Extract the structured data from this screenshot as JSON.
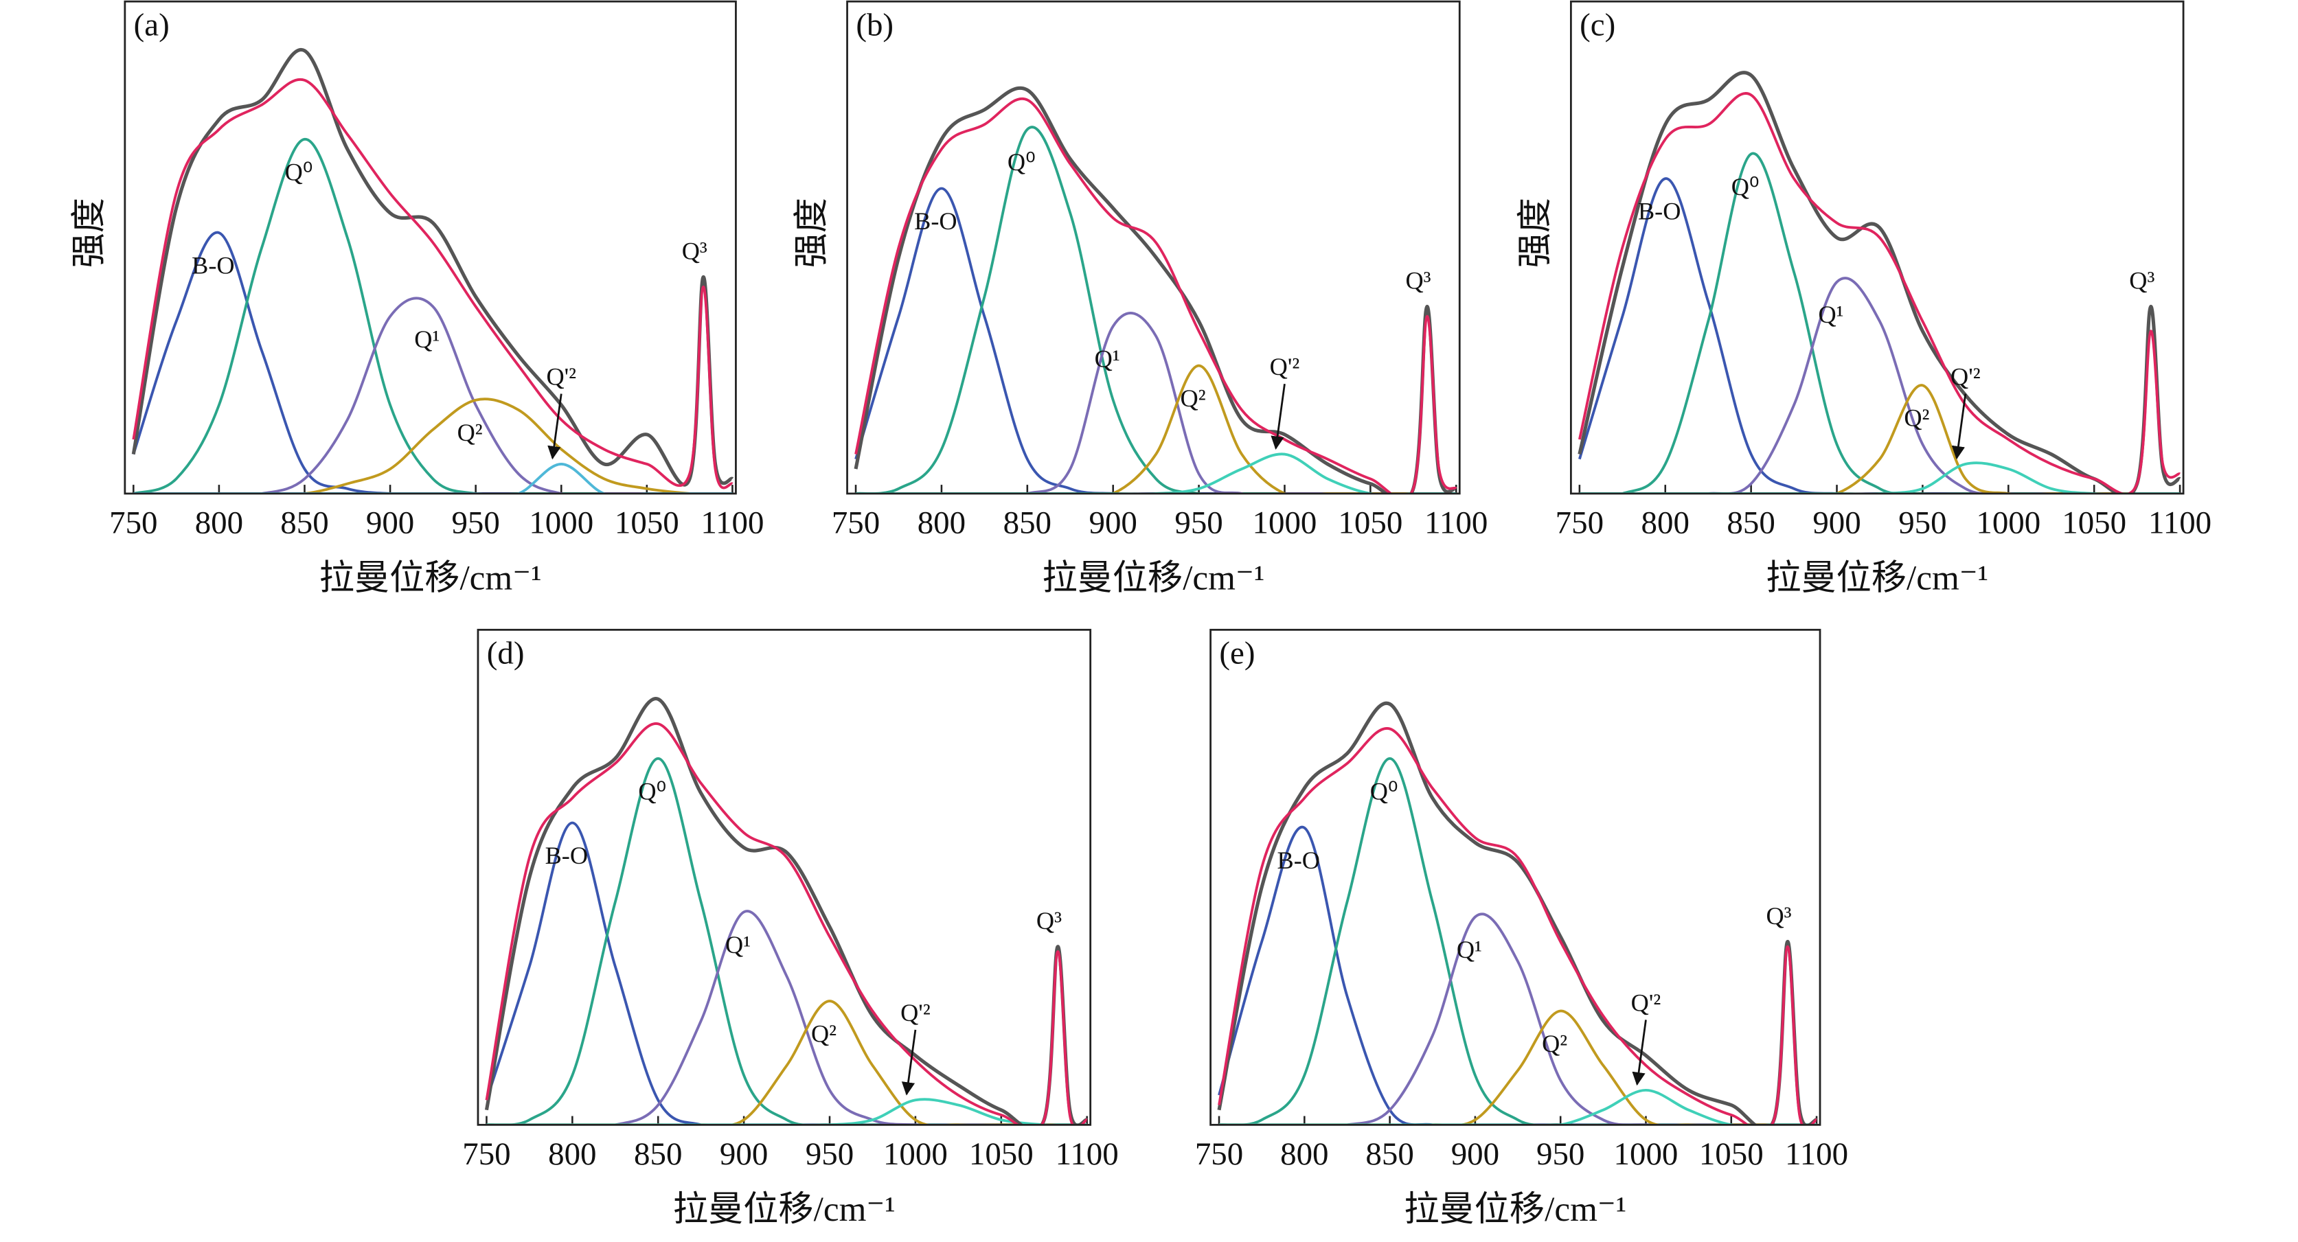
{
  "chart_data": [
    {
      "type": "line",
      "panel_label": "(a)",
      "x_label": "拉曼位移/cm⁻¹",
      "y_label": "强度",
      "x": [
        750,
        775,
        800,
        825,
        850,
        875,
        900,
        925,
        950,
        975,
        1000,
        1025,
        1050,
        1075,
        1083,
        1090,
        1100
      ],
      "xlim": [
        745,
        1102
      ],
      "xticks": [
        750,
        800,
        850,
        900,
        950,
        1000,
        1050,
        1100
      ],
      "ylim": [
        0,
        100
      ],
      "series": [
        {
          "name": "B-O",
          "color": "#3a56b0",
          "values": [
            8,
            35,
            53,
            29,
            5,
            1,
            0,
            0,
            0,
            0,
            0,
            0,
            0,
            0,
            0,
            0,
            0
          ]
        },
        {
          "name": "Q⁰",
          "color": "#2aa58a",
          "values": [
            0,
            3,
            18,
            50,
            72,
            52,
            18,
            3,
            0,
            0,
            0,
            0,
            0,
            0,
            0,
            0,
            0
          ]
        },
        {
          "name": "Q¹",
          "color": "#7a6cb5",
          "values": [
            0,
            0,
            0,
            0,
            3,
            15,
            36,
            38,
            18,
            4,
            0,
            0,
            0,
            0,
            0,
            0,
            0
          ]
        },
        {
          "name": "Q²",
          "color": "#c19a1e",
          "values": [
            0,
            0,
            0,
            0,
            0,
            2,
            5,
            13,
            19,
            17,
            9,
            3,
            1,
            0,
            0,
            0,
            0
          ]
        },
        {
          "name": "Q'²",
          "color": "#4fb8d8",
          "label_arrow": true,
          "values": [
            0,
            0,
            0,
            0,
            0,
            0,
            0,
            0,
            0,
            0,
            6,
            0,
            0,
            0,
            0,
            0,
            0
          ]
        },
        {
          "color": "#555555",
          "values": [
            8,
            58,
            76,
            80,
            90,
            70,
            57,
            55,
            40,
            28,
            18,
            6,
            12,
            3,
            44,
            6,
            3
          ]
        },
        {
          "color": "#e0245e",
          "values": [
            11,
            61,
            74,
            79,
            84,
            73,
            61,
            51,
            38,
            26,
            15,
            9,
            6,
            4,
            42,
            5,
            2
          ]
        }
      ],
      "annotations": [
        {
          "text": "Q³",
          "x": 1083
        }
      ]
    },
    {
      "type": "line",
      "panel_label": "(b)",
      "x_label": "拉曼位移/cm⁻¹",
      "y_label": "强度",
      "x": [
        750,
        775,
        800,
        825,
        850,
        875,
        900,
        925,
        950,
        975,
        1000,
        1025,
        1050,
        1075,
        1083,
        1090,
        1100
      ],
      "xlim": [
        745,
        1102
      ],
      "xticks": [
        750,
        800,
        850,
        900,
        950,
        1000,
        1050,
        1100
      ],
      "ylim": [
        0,
        100
      ],
      "series": [
        {
          "name": "B-O",
          "color": "#3a56b0",
          "values": [
            7,
            36,
            62,
            36,
            7,
            1,
            0,
            0,
            0,
            0,
            0,
            0,
            0,
            0,
            0,
            0,
            0
          ]
        },
        {
          "name": "Q⁰",
          "color": "#2aa58a",
          "values": [
            0,
            1,
            9,
            40,
            74,
            57,
            19,
            3,
            0,
            0,
            0,
            0,
            0,
            0,
            0,
            0,
            0
          ]
        },
        {
          "name": "Q¹",
          "color": "#7a6cb5",
          "values": [
            0,
            0,
            0,
            0,
            0,
            5,
            34,
            32,
            4,
            0,
            0,
            0,
            0,
            0,
            0,
            0,
            0
          ]
        },
        {
          "name": "Q²",
          "color": "#c19a1e",
          "values": [
            0,
            0,
            0,
            0,
            0,
            0,
            0,
            8,
            26,
            8,
            0,
            0,
            0,
            0,
            0,
            0,
            0
          ]
        },
        {
          "name": "Q'²",
          "color": "#3fd0b8",
          "label_arrow": true,
          "values": [
            0,
            0,
            0,
            0,
            0,
            0,
            0,
            0,
            1,
            5,
            8,
            3,
            0,
            0,
            0,
            0,
            0
          ]
        },
        {
          "color": "#555555",
          "values": [
            5,
            48,
            72,
            78,
            82,
            68,
            58,
            48,
            35,
            15,
            12,
            6,
            2,
            1,
            38,
            4,
            1
          ]
        },
        {
          "color": "#e0245e",
          "values": [
            8,
            50,
            70,
            75,
            80,
            67,
            56,
            51,
            33,
            17,
            11,
            7,
            3,
            1,
            36,
            5,
            1
          ]
        }
      ],
      "annotations": [
        {
          "text": "Q³",
          "x": 1083
        }
      ]
    },
    {
      "type": "line",
      "panel_label": "(c)",
      "x_label": "拉曼位移/cm⁻¹",
      "y_label": "强度",
      "x": [
        750,
        775,
        800,
        825,
        850,
        875,
        900,
        925,
        950,
        975,
        1000,
        1025,
        1050,
        1075,
        1083,
        1090,
        1100
      ],
      "xlim": [
        745,
        1102
      ],
      "xticks": [
        750,
        800,
        850,
        900,
        950,
        1000,
        1050,
        1100
      ],
      "ylim": [
        0,
        100
      ],
      "series": [
        {
          "name": "B-O",
          "color": "#3a56b0",
          "values": [
            7,
            36,
            64,
            39,
            8,
            1,
            0,
            0,
            0,
            0,
            0,
            0,
            0,
            0,
            0,
            0,
            0
          ]
        },
        {
          "name": "Q⁰",
          "color": "#2aa58a",
          "values": [
            0,
            0,
            6,
            35,
            69,
            45,
            10,
            1,
            0,
            0,
            0,
            0,
            0,
            0,
            0,
            0,
            0
          ]
        },
        {
          "name": "Q¹",
          "color": "#7a6cb5",
          "values": [
            0,
            0,
            0,
            0,
            2,
            18,
            43,
            35,
            10,
            1,
            0,
            0,
            0,
            0,
            0,
            0,
            0
          ]
        },
        {
          "name": "Q²",
          "color": "#c19a1e",
          "values": [
            0,
            0,
            0,
            0,
            0,
            0,
            0,
            7,
            22,
            3,
            0,
            0,
            0,
            0,
            0,
            0,
            0
          ]
        },
        {
          "name": "Q'²",
          "color": "#3fd0b8",
          "label_arrow": true,
          "values": [
            0,
            0,
            0,
            0,
            0,
            0,
            0,
            0,
            1,
            6,
            5,
            1,
            0,
            0,
            0,
            0,
            0
          ]
        },
        {
          "color": "#555555",
          "values": [
            8,
            46,
            75,
            80,
            85,
            66,
            52,
            54,
            33,
            20,
            12,
            8,
            3,
            2,
            38,
            5,
            3
          ]
        },
        {
          "color": "#e0245e",
          "values": [
            11,
            50,
            72,
            75,
            81,
            64,
            55,
            52,
            35,
            18,
            11,
            6,
            3,
            2,
            33,
            6,
            4
          ]
        }
      ],
      "annotations": [
        {
          "text": "Q³",
          "x": 1083
        }
      ]
    },
    {
      "type": "line",
      "panel_label": "(d)",
      "x_label": "拉曼位移/cm⁻¹",
      "x": [
        750,
        775,
        800,
        825,
        850,
        875,
        900,
        925,
        950,
        975,
        1000,
        1025,
        1050,
        1075,
        1083,
        1090,
        1100
      ],
      "xlim": [
        745,
        1102
      ],
      "xticks": [
        750,
        800,
        850,
        900,
        950,
        1000,
        1050,
        1100
      ],
      "ylim": [
        0,
        100
      ],
      "series": [
        {
          "name": "B-O",
          "color": "#3a56b0",
          "values": [
            5,
            32,
            61,
            32,
            5,
            0,
            0,
            0,
            0,
            0,
            0,
            0,
            0,
            0,
            0,
            0,
            0
          ]
        },
        {
          "name": "Q⁰",
          "color": "#2aa58a",
          "values": [
            0,
            1,
            10,
            45,
            74,
            45,
            10,
            1,
            0,
            0,
            0,
            0,
            0,
            0,
            0,
            0,
            0
          ]
        },
        {
          "name": "Q¹",
          "color": "#7a6cb5",
          "values": [
            0,
            0,
            0,
            0,
            4,
            21,
            43,
            30,
            7,
            1,
            0,
            0,
            0,
            0,
            0,
            0,
            0
          ]
        },
        {
          "name": "Q²",
          "color": "#c19a1e",
          "values": [
            0,
            0,
            0,
            0,
            0,
            0,
            1,
            12,
            25,
            12,
            1,
            0,
            0,
            0,
            0,
            0,
            0
          ]
        },
        {
          "name": "Q'²",
          "color": "#3fd0b8",
          "label_arrow": true,
          "values": [
            0,
            0,
            0,
            0,
            0,
            0,
            0,
            0,
            0,
            1,
            5,
            4,
            1,
            0,
            0,
            0,
            0
          ]
        },
        {
          "color": "#555555",
          "values": [
            3,
            50,
            68,
            74,
            86,
            67,
            56,
            55,
            40,
            22,
            14,
            8,
            3,
            1,
            36,
            3,
            1
          ]
        },
        {
          "color": "#e0245e",
          "values": [
            5,
            54,
            66,
            73,
            81,
            69,
            59,
            54,
            38,
            23,
            13,
            6,
            2,
            1,
            35,
            2,
            1
          ]
        }
      ],
      "annotations": [
        {
          "text": "Q³",
          "x": 1083
        }
      ]
    },
    {
      "type": "line",
      "panel_label": "(e)",
      "x_label": "拉曼位移/cm⁻¹",
      "x": [
        750,
        775,
        800,
        825,
        850,
        875,
        900,
        925,
        950,
        975,
        1000,
        1025,
        1050,
        1075,
        1083,
        1090,
        1100
      ],
      "xlim": [
        745,
        1102
      ],
      "xticks": [
        750,
        800,
        850,
        900,
        950,
        1000,
        1050,
        1100
      ],
      "ylim": [
        0,
        100
      ],
      "series": [
        {
          "name": "B-O",
          "color": "#3a56b0",
          "values": [
            6,
            37,
            60,
            26,
            3,
            0,
            0,
            0,
            0,
            0,
            0,
            0,
            0,
            0,
            0,
            0,
            0
          ]
        },
        {
          "name": "Q⁰",
          "color": "#2aa58a",
          "values": [
            0,
            1,
            10,
            45,
            74,
            45,
            10,
            1,
            0,
            0,
            0,
            0,
            0,
            0,
            0,
            0,
            0
          ]
        },
        {
          "name": "Q¹",
          "color": "#7a6cb5",
          "values": [
            0,
            0,
            0,
            0,
            3,
            18,
            42,
            33,
            9,
            1,
            0,
            0,
            0,
            0,
            0,
            0,
            0
          ]
        },
        {
          "name": "Q²",
          "color": "#c19a1e",
          "values": [
            0,
            0,
            0,
            0,
            0,
            0,
            1,
            11,
            23,
            12,
            1,
            0,
            0,
            0,
            0,
            0,
            0
          ]
        },
        {
          "name": "Q'²",
          "color": "#3fd0b8",
          "label_arrow": true,
          "values": [
            0,
            0,
            0,
            0,
            0,
            0,
            0,
            0,
            0,
            3,
            7,
            3,
            0,
            0,
            0,
            0,
            0
          ]
        },
        {
          "color": "#555555",
          "values": [
            3,
            48,
            68,
            75,
            85,
            66,
            57,
            53,
            38,
            21,
            14,
            7,
            4,
            1,
            37,
            3,
            1
          ]
        },
        {
          "color": "#e0245e",
          "values": [
            4,
            52,
            66,
            73,
            80,
            68,
            58,
            54,
            37,
            22,
            12,
            6,
            2,
            1,
            36,
            2,
            1
          ]
        }
      ],
      "annotations": [
        {
          "text": "Q³",
          "x": 1083
        }
      ]
    }
  ]
}
